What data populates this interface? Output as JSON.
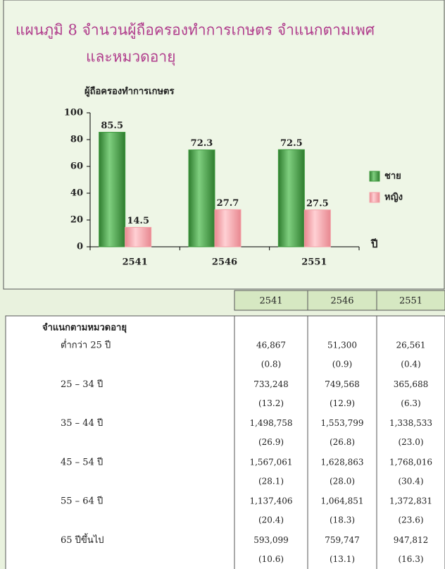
{
  "chart_data": {
    "type": "bar",
    "title_lines": [
      "แผนภูมิ 8  จำนวนผู้ถือครองทำการเกษตร  จำแนกตามเพศ",
      "และหมวดอายุ"
    ],
    "y_axis_label": "ผู้ถือครองทำการเกษตร",
    "x_axis_label": "ปี",
    "categories": [
      "2541",
      "2546",
      "2551"
    ],
    "series": [
      {
        "name": "ชาย",
        "color": "#3e9a3e",
        "values": [
          85.5,
          72.3,
          72.5
        ]
      },
      {
        "name": "หญิง",
        "color": "#f4a0a8",
        "values": [
          14.5,
          27.7,
          27.5
        ]
      }
    ],
    "ylim": [
      0,
      100
    ],
    "yticks": [
      0,
      20,
      40,
      60,
      80,
      100
    ],
    "legend": "right"
  },
  "table": {
    "columns": [
      "2541",
      "2546",
      "2551"
    ],
    "section": "จำแนกตามหมวดอายุ",
    "rows": [
      {
        "label": "ต่ำกว่า   25  ปี",
        "values": [
          "46,867",
          "51,300",
          "26,561"
        ],
        "shares": [
          "(0.8)",
          "(0.9)",
          "(0.4)"
        ]
      },
      {
        "label": "25   –   34  ปี",
        "values": [
          "733,248",
          "749,568",
          "365,688"
        ],
        "shares": [
          "(13.2)",
          "(12.9)",
          "(6.3)"
        ]
      },
      {
        "label": "35   –   44  ปี",
        "values": [
          "1,498,758",
          "1,553,799",
          "1,338,533"
        ],
        "shares": [
          "(26.9)",
          "(26.8)",
          "(23.0)"
        ]
      },
      {
        "label": "45   –   54  ปี",
        "values": [
          "1,567,061",
          "1,628,863",
          "1,768,016"
        ],
        "shares": [
          "(28.1)",
          "(28.0)",
          "(30.4)"
        ]
      },
      {
        "label": "55   –   64  ปี",
        "values": [
          "1,137,406",
          "1,064,851",
          "1,372,831"
        ],
        "shares": [
          "(20.4)",
          "(18.3)",
          "(23.6)"
        ]
      },
      {
        "label": "65   ปีขึ้นไป",
        "values": [
          "593,099",
          "759,747",
          "947,812"
        ],
        "shares": [
          "(10.6)",
          "(13.1)",
          "(16.3)"
        ]
      }
    ]
  }
}
